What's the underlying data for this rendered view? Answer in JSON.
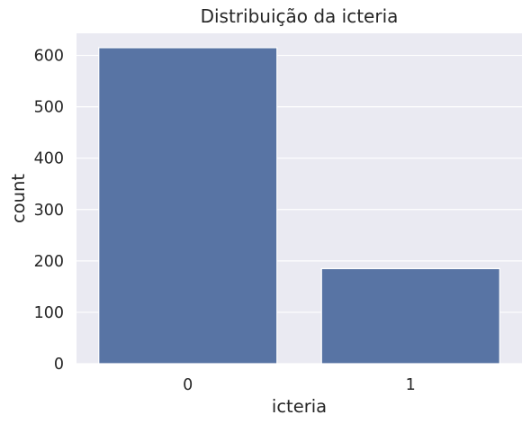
{
  "chart_data": {
    "type": "bar",
    "title": "Distribuição da icteria",
    "xlabel": "icteria",
    "ylabel": "count",
    "categories": [
      "0",
      "1"
    ],
    "values": [
      615,
      185
    ],
    "ylim": [
      0,
      643
    ],
    "yticks": [
      0,
      100,
      200,
      300,
      400,
      500,
      600
    ],
    "grid": true,
    "colors": {
      "bar": "#5874a4",
      "plot_background": "#eaeaf2",
      "grid": "#ffffff",
      "text": "#262626"
    }
  }
}
